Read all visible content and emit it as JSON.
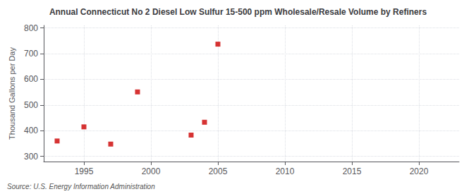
{
  "chart_data": {
    "type": "scatter",
    "title": "Annual Connecticut No 2 Diesel Low Sulfur 15-500 ppm Wholesale/Resale Volume by Refiners",
    "ylabel": "Thousand Gallons per Day",
    "annotation": "Source: U.S. Energy Information Administration",
    "x": [
      1993,
      1995,
      1997,
      1999,
      2003,
      2004,
      2005
    ],
    "values": [
      360,
      415,
      348,
      551,
      383,
      433,
      737
    ],
    "color": "#cc0000",
    "marker": "square",
    "xlim": [
      1992,
      2023
    ],
    "ylim": [
      280,
      810
    ],
    "xticks": [
      1995,
      2000,
      2005,
      2010,
      2015,
      2020
    ],
    "yticks": [
      300,
      400,
      500,
      600,
      700,
      800
    ],
    "grid": true
  }
}
